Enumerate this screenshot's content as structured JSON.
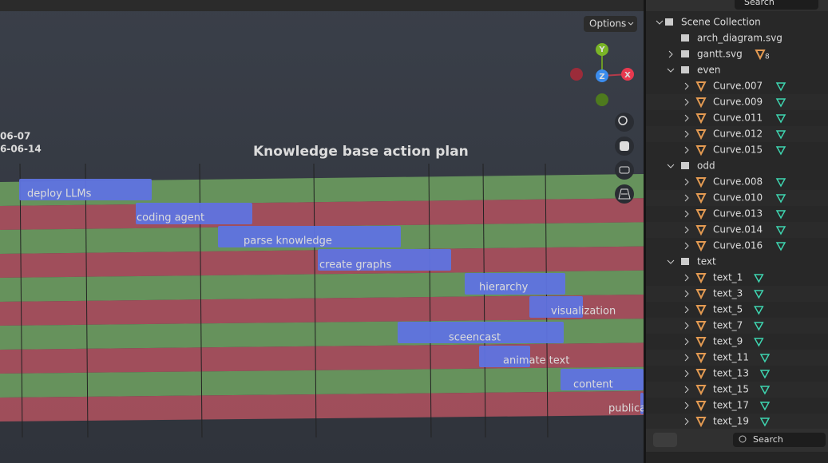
{
  "viewport": {
    "options": "Options",
    "gizmo": {
      "y": "Y",
      "z": "Z",
      "x": "X"
    },
    "dates": [
      "06-07",
      "6-06-14"
    ],
    "title": "Knowledge base action plan",
    "tasks": [
      "deploy LLMs",
      "coding agent",
      "parse knowledge",
      "create graphs",
      "hierarchy",
      "visualization",
      "sceencast",
      "animate text",
      "content",
      "publica"
    ]
  },
  "outliner": {
    "search": "Search",
    "root": "Scene Collection",
    "items": [
      {
        "label": "arch_diagram.svg"
      },
      {
        "label": "gantt.svg",
        "count": 8
      },
      {
        "label": "even",
        "children": [
          "Curve.007",
          "Curve.009",
          "Curve.011",
          "Curve.012",
          "Curve.015"
        ]
      },
      {
        "label": "odd",
        "children": [
          "Curve.008",
          "Curve.010",
          "Curve.013",
          "Curve.014",
          "Curve.016"
        ]
      },
      {
        "label": "text",
        "children": [
          "text_1",
          "text_3",
          "text_5",
          "text_7",
          "text_9",
          "text_11",
          "text_13",
          "text_15",
          "text_17",
          "text_19"
        ]
      }
    ]
  },
  "properties": {
    "search": "Search"
  }
}
